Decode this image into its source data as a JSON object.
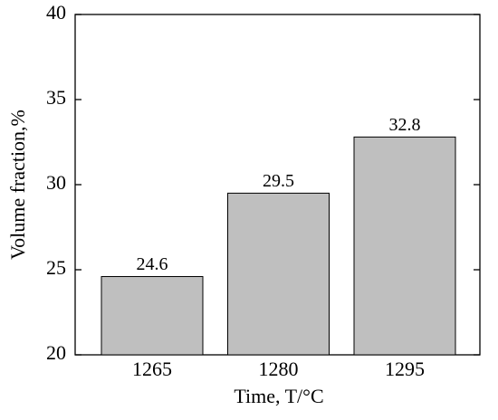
{
  "chart_data": {
    "type": "bar",
    "x_label": "Time, T/°C",
    "y_label": "Volume fraction,%",
    "categories": [
      "1265",
      "1280",
      "1295"
    ],
    "values": [
      24.6,
      29.5,
      32.8
    ],
    "color": "#bfbfbf",
    "ylim": [
      20,
      40
    ],
    "yticks": [
      20,
      25,
      30,
      35,
      40
    ],
    "grid": false
  }
}
